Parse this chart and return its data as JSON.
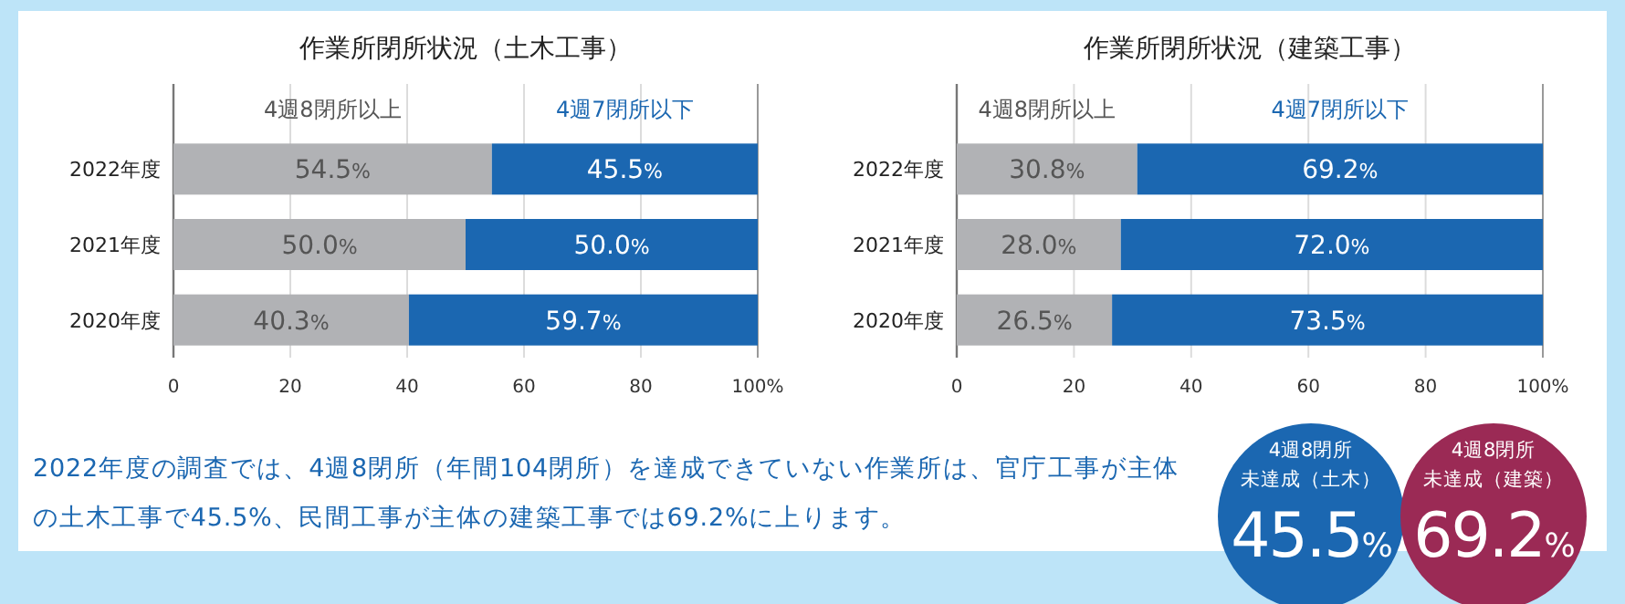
{
  "chart_data": [
    {
      "type": "bar",
      "orientation": "horizontal",
      "stacked": true,
      "title": "作業所閉所状況（土木工事）",
      "categories": [
        "2022年度",
        "2021年度",
        "2020年度"
      ],
      "legend": "top",
      "grid": "x",
      "xlim": [
        0,
        100
      ],
      "xticks": [
        0,
        20,
        40,
        60,
        80,
        {
          "value": 100,
          "label": "100%"
        }
      ],
      "series": [
        {
          "name": "4週8閉所以上",
          "color": "#b1b2b5",
          "values": [
            54.5,
            50.0,
            40.3
          ],
          "value_labels": [
            "54.5%",
            "50.0%",
            "40.3%"
          ]
        },
        {
          "name": "4週7閉所以下",
          "color": "#1b67b1",
          "values": [
            45.5,
            50.0,
            59.7
          ],
          "value_labels": [
            "45.5%",
            "50.0%",
            "59.7%"
          ]
        }
      ]
    },
    {
      "type": "bar",
      "orientation": "horizontal",
      "stacked": true,
      "title": "作業所閉所状況（建築工事）",
      "categories": [
        "2022年度",
        "2021年度",
        "2020年度"
      ],
      "legend": "top",
      "grid": "x",
      "xlim": [
        0,
        100
      ],
      "xticks": [
        0,
        20,
        40,
        60,
        80,
        {
          "value": 100,
          "label": "100%"
        }
      ],
      "series": [
        {
          "name": "4週8閉所以上",
          "color": "#b1b2b5",
          "values": [
            30.8,
            28.0,
            26.5
          ],
          "value_labels": [
            "30.8%",
            "28.0%",
            "26.5%"
          ]
        },
        {
          "name": "4週7閉所以下",
          "color": "#1b67b1",
          "values": [
            69.2,
            72.0,
            73.5
          ],
          "value_labels": [
            "69.2%",
            "72.0%",
            "73.5%"
          ]
        }
      ]
    },
    {
      "type": "other",
      "annotations": [
        "2022年度の調査では、4週8閉所（年間104閉所）を達成できていない作業所は、官庁工事が主体の土木工事で45.5%、民間工事が主体の建築工事では69.2%に上ります。",
        "4週8閉所",
        "未達成（土木）",
        "45.5%",
        "4週8閉所",
        "未達成（建築）",
        "69.2%"
      ]
    }
  ]
}
